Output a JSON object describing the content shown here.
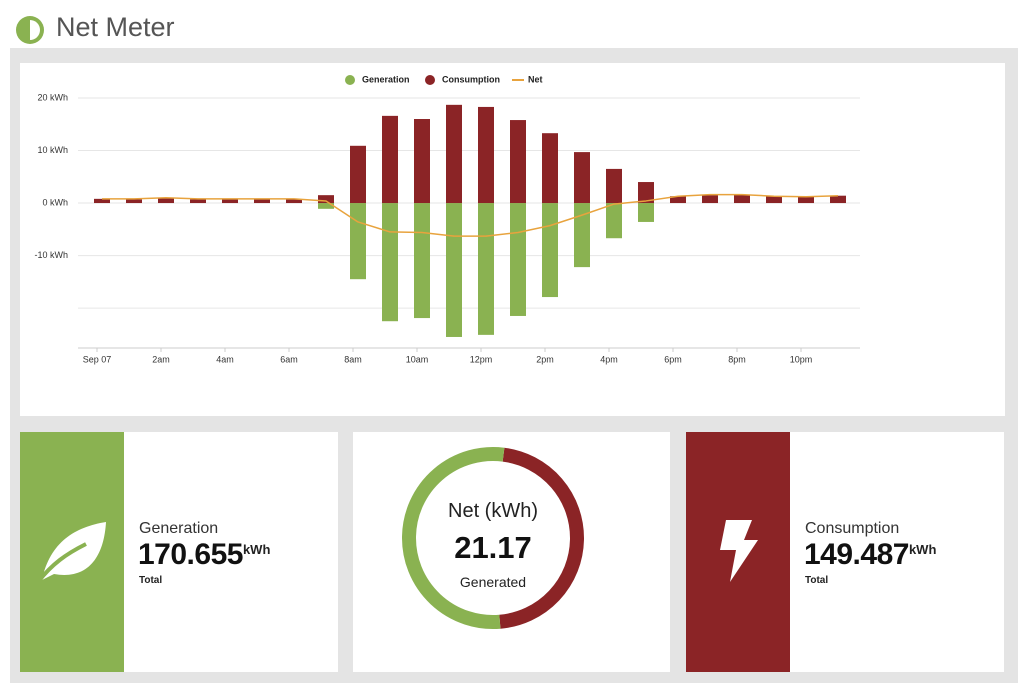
{
  "header": {
    "title": "Net Meter"
  },
  "chart_data": {
    "type": "bar",
    "categories": [
      "Sep 07",
      null,
      "2am",
      null,
      "4am",
      null,
      "6am",
      null,
      "8am",
      null,
      "10am",
      null,
      "12pm",
      null,
      "2pm",
      null,
      "4pm",
      null,
      "6pm",
      null,
      "8pm",
      null,
      "10pm",
      null
    ],
    "series": [
      {
        "name": "Generation",
        "color": "#8ab251",
        "values": [
          0,
          0,
          0,
          0,
          0,
          0,
          0,
          -1.1,
          -14.5,
          -22.5,
          -21.9,
          -25.5,
          -25.1,
          -21.5,
          -17.9,
          -12.2,
          -6.7,
          -3.6,
          0,
          0,
          0,
          0,
          0,
          0
        ]
      },
      {
        "name": "Consumption",
        "color": "#8b2426",
        "values": [
          0.8,
          0.7,
          1.0,
          0.7,
          0.7,
          0.7,
          0.7,
          1.5,
          10.9,
          16.6,
          16.0,
          18.7,
          18.3,
          15.8,
          13.3,
          9.7,
          6.5,
          4.0,
          1.3,
          1.5,
          1.6,
          1.3,
          1.3,
          1.4
        ]
      },
      {
        "name": "Net",
        "type": "line",
        "color": "#e8a33d",
        "values": [
          0.8,
          0.8,
          1.0,
          0.8,
          0.8,
          0.8,
          0.8,
          0.4,
          -3.6,
          -5.5,
          -5.6,
          -6.3,
          -6.3,
          -5.6,
          -4.3,
          -2.3,
          -0.2,
          0.4,
          1.3,
          1.6,
          1.6,
          1.3,
          1.2,
          1.4
        ]
      }
    ],
    "ylim": [
      -27.6,
      22
    ],
    "yticks": [
      {
        "value": 20,
        "label": "20 kWh"
      },
      {
        "value": 10,
        "label": "10 kWh"
      },
      {
        "value": 0,
        "label": "0 kWh"
      },
      {
        "value": -10,
        "label": "-10 kWh"
      },
      {
        "value": -20,
        "label": null
      }
    ],
    "grid": true,
    "legend": "top"
  },
  "cards": {
    "generation": {
      "label": "Generation",
      "value": 170.655,
      "unit": "kWh",
      "note": "Total",
      "color": "#8ab251"
    },
    "net": {
      "label": "Net (kWh)",
      "value": 21.17,
      "note": "Generated"
    },
    "consumption": {
      "label": "Consumption",
      "value": 149.487,
      "unit": "kWh",
      "note": "Total",
      "color": "#8b2426"
    }
  }
}
